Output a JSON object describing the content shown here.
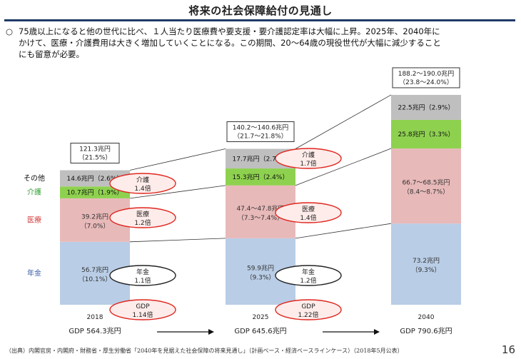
{
  "header": {
    "title": "将来の社会保障給付の見通し",
    "summary_bullet": "○",
    "summary_line1": "75歳以上になると他の世代に比べ、１人当たり医療費や要支援・要介護認定率は大幅に上昇。2025年、2040年に",
    "summary_line2": "かけて、医療・介護費用は大きく増加していくことになる。この期間、20～64歳の現役世代が大幅に減少すること",
    "summary_line3": "にも留意が必要。"
  },
  "chart_data": {
    "type": "bar",
    "stacked": true,
    "categories": [
      "2018",
      "2025",
      "2040"
    ],
    "gdp_labels": [
      "GDP 564.3兆円",
      "GDP 645.6兆円",
      "GDP 790.6兆円"
    ],
    "totals": [
      {
        "line1": "121.3兆円",
        "line2": "（21.5%）"
      },
      {
        "line1": "140.2～140.6兆円",
        "line2": "（21.7～21.8%）"
      },
      {
        "line1": "188.2～190.0兆円",
        "line2": "（23.8～24.0%）"
      }
    ],
    "series": [
      {
        "name": "年金",
        "color": "#b9cde6",
        "label_color": "#3a5fa8",
        "values": [
          56.7,
          59.9,
          73.2
        ],
        "labels": [
          [
            "56.7兆円",
            "（10.1%）"
          ],
          [
            "59.9兆円",
            "（9.3%）"
          ],
          [
            "73.2兆円",
            "（9.3%）"
          ]
        ]
      },
      {
        "name": "医療",
        "color": "#e8b9b9",
        "label_color": "#d23b3b",
        "values": [
          39.2,
          47.6,
          67.6
        ],
        "labels": [
          [
            "39.2兆円",
            "（7.0%）"
          ],
          [
            "47.4～47.8兆円",
            "（7.3～7.4%）"
          ],
          [
            "66.7～68.5兆円",
            "（8.4～8.7%）"
          ]
        ]
      },
      {
        "name": "介護",
        "color": "#8ed14f",
        "label_color": "#2f9e2f",
        "values": [
          10.7,
          15.3,
          25.8
        ],
        "labels": [
          [
            "10.7兆円（1.9%）"
          ],
          [
            "15.3兆円（2.4%）"
          ],
          [
            "25.8兆円（3.3%）"
          ]
        ]
      },
      {
        "name": "その他",
        "color": "#bfbfbf",
        "label_color": "#111111",
        "values": [
          14.6,
          17.7,
          22.5
        ],
        "labels": [
          [
            "14.6兆円（2.6%）"
          ],
          [
            "17.7兆円（2.7%）"
          ],
          [
            "22.5兆円（2.9%）"
          ]
        ]
      }
    ],
    "growth_annotations": [
      {
        "series": "介護",
        "between": [
          "2018",
          "2025"
        ],
        "label": "介護",
        "factor": "1.4倍",
        "emphasis": true
      },
      {
        "series": "医療",
        "between": [
          "2018",
          "2025"
        ],
        "label": "医療",
        "factor": "1.2倍",
        "emphasis": true
      },
      {
        "series": "年金",
        "between": [
          "2018",
          "2025"
        ],
        "label": "年金",
        "factor": "1.1倍",
        "emphasis": false
      },
      {
        "series": "GDP",
        "between": [
          "2018",
          "2025"
        ],
        "label": "GDP",
        "factor": "1.14倍",
        "emphasis": true
      },
      {
        "series": "介護",
        "between": [
          "2025",
          "2040"
        ],
        "label": "介護",
        "factor": "1.7倍",
        "emphasis": true
      },
      {
        "series": "医療",
        "between": [
          "2025",
          "2040"
        ],
        "label": "医療",
        "factor": "1.4倍",
        "emphasis": true
      },
      {
        "series": "年金",
        "between": [
          "2025",
          "2040"
        ],
        "label": "年金",
        "factor": "1.2倍",
        "emphasis": false
      },
      {
        "series": "GDP",
        "between": [
          "2025",
          "2040"
        ],
        "label": "GDP",
        "factor": "1.22倍",
        "emphasis": true
      }
    ],
    "emphasis_color": "#e0271f",
    "gdp_arrow": "→"
  },
  "footer": {
    "source": "（出典）内閣官房・内閣府・財務省・厚生労働省「2040年を見据えた社会保障の将来見通し」（計画ベース・経済ベースラインケース）（2018年5月公表）",
    "page_number": "16"
  }
}
